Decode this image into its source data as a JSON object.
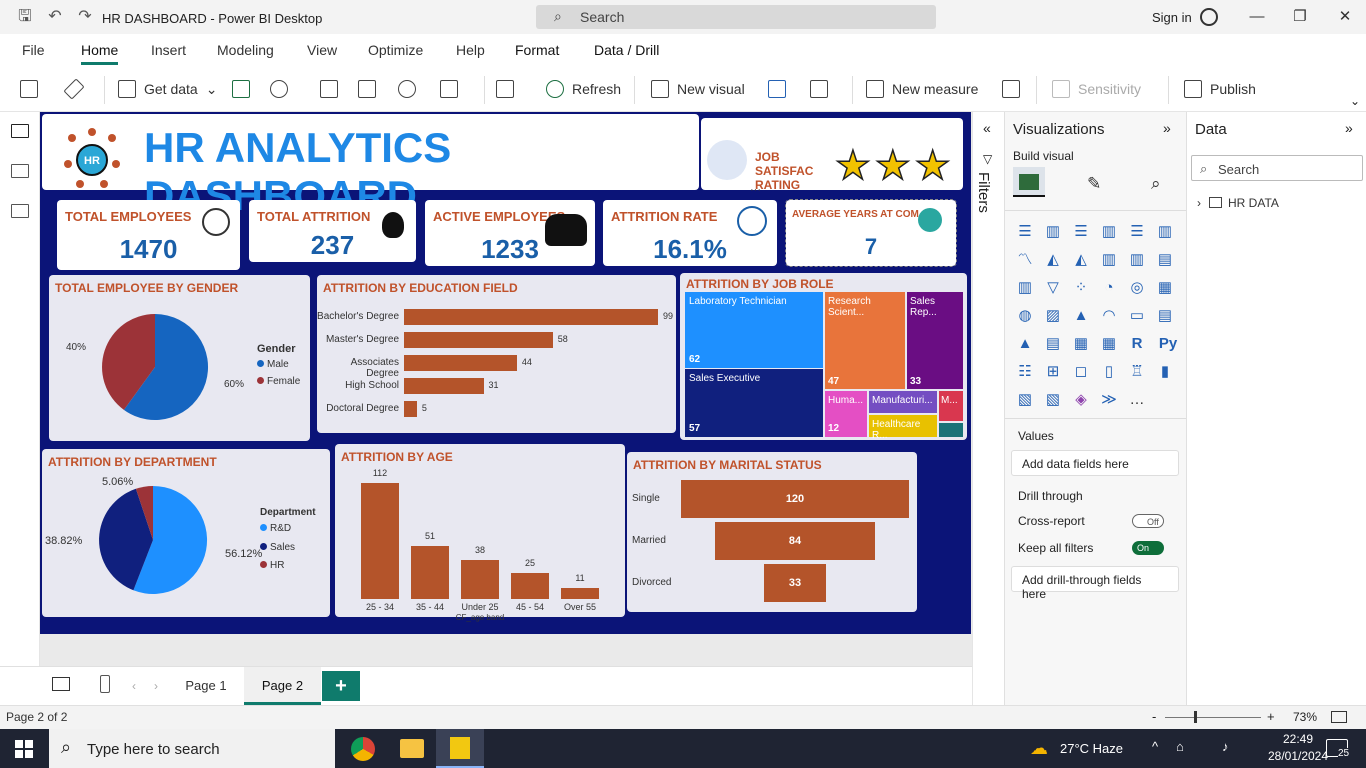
{
  "window": {
    "title": "HR DASHBOARD - Power BI Desktop",
    "search_placeholder": "Search",
    "sign_in": "Sign in"
  },
  "menu": [
    "File",
    "Home",
    "Insert",
    "Modeling",
    "View",
    "Optimize",
    "Help",
    "Format",
    "Data / Drill"
  ],
  "ribbon": {
    "get_data": "Get data",
    "refresh": "Refresh",
    "new_visual": "New visual",
    "new_measure": "New measure",
    "sensitivity": "Sensitivity",
    "publish": "Publish"
  },
  "dashboard": {
    "title": "HR ANALYTICS DASHBOARD",
    "job_sat_label": "JOB SATISFAC RATING",
    "job_sat_stars": 3,
    "kpis": [
      {
        "title": "TOTAL EMPLOYEES",
        "value": "1470"
      },
      {
        "title": "TOTAL ATTRITION",
        "value": "237"
      },
      {
        "title": "ACTIVE EMPLOYEES",
        "value": "1233"
      },
      {
        "title": "ATTRITION RATE",
        "value": "16.1%"
      },
      {
        "title": "AVERAGE YEARS AT COM.",
        "value": "7"
      }
    ],
    "gender": {
      "title": "TOTAL EMPLOYEE BY GENDER",
      "legend_title": "Gender",
      "male_label": "Male",
      "female_label": "Female",
      "male_pct": "60%",
      "female_pct": "40%"
    },
    "department": {
      "title": "ATTRITION BY DEPARTMENT",
      "legend_title": "Department",
      "rd": "R&D",
      "sales": "Sales",
      "hr": "HR",
      "rd_pct": "56.12%",
      "sales_pct": "38.82%",
      "hr_pct": "5.06%"
    },
    "job_role": {
      "title": "ATTRITION BY JOB ROLE",
      "lab": "Laboratory Technician",
      "lab_val": "62",
      "res": "Research Scient...",
      "res_val": "47",
      "salesrep": "Sales Rep...",
      "salesrep_val": "33",
      "salesexec": "Sales Executive",
      "salesexec_val": "57",
      "hum": "Huma...",
      "hum_val": "12",
      "manu": "Manufacturi...",
      "health": "Healthcare R...",
      "m": "M..."
    },
    "colors": {
      "navy": "#0b1478",
      "bar": "#b4542a",
      "kpi_title": "#c0522b",
      "kpi_value": "#1a5fa8",
      "male": "#1565c0",
      "female": "#9c3338"
    }
  },
  "chart_data": [
    {
      "type": "bar",
      "title": "ATTRITION BY EDUCATION FIELD",
      "categories": [
        "Bachelor's Degree",
        "Master's Degree",
        "Associates Degree",
        "High School",
        "Doctoral Degree"
      ],
      "values": [
        99,
        58,
        44,
        31,
        5
      ]
    },
    {
      "type": "bar",
      "title": "ATTRITION BY AGE",
      "categories": [
        "25 - 34",
        "35 - 44",
        "Under 25",
        "45 - 54",
        "Over 55"
      ],
      "values": [
        112,
        51,
        38,
        25,
        11
      ],
      "xlabel": "CF_age band"
    },
    {
      "type": "bar",
      "title": "ATTRITION BY MARITAL STATUS",
      "categories": [
        "Single",
        "Married",
        "Divorced"
      ],
      "values": [
        120,
        84,
        33
      ]
    },
    {
      "type": "pie",
      "title": "TOTAL EMPLOYEE BY GENDER",
      "categories": [
        "Male",
        "Female"
      ],
      "values": [
        60,
        40
      ]
    },
    {
      "type": "pie",
      "title": "ATTRITION BY DEPARTMENT",
      "categories": [
        "R&D",
        "Sales",
        "HR"
      ],
      "values": [
        56.12,
        38.82,
        5.06
      ]
    },
    {
      "type": "treemap",
      "title": "ATTRITION BY JOB ROLE",
      "categories": [
        "Laboratory Technician",
        "Sales Executive",
        "Research Scientist",
        "Sales Representative",
        "Human Resources"
      ],
      "values": [
        62,
        57,
        47,
        33,
        12
      ]
    }
  ],
  "viz": {
    "title": "Visualizations",
    "build": "Build visual",
    "values": "Values",
    "add_fields": "Add data fields here",
    "drill": "Drill through",
    "cross": "Cross-report",
    "cross_state": "Off",
    "keep": "Keep all filters",
    "keep_state": "On",
    "add_drill": "Add drill-through fields here"
  },
  "data_pane": {
    "title": "Data",
    "search": "Search",
    "table": "HR DATA"
  },
  "filters_label": "Filters",
  "pages": {
    "p1": "Page 1",
    "p2": "Page 2",
    "add": "+"
  },
  "status": {
    "page": "Page 2 of 2",
    "zoom": "73%"
  },
  "taskbar": {
    "search": "Type here to search",
    "weather": "27°C  Haze",
    "time": "22:49",
    "date": "28/01/2024",
    "notif": "25"
  }
}
